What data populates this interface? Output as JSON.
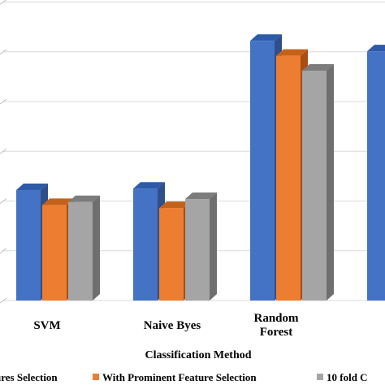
{
  "chart_data": {
    "type": "bar",
    "categories": [
      "SVM",
      "Naive  Byes",
      "Random Forest",
      ""
    ],
    "category_lines": [
      [
        "SVM"
      ],
      [
        "Naive  Byes"
      ],
      [
        "Random",
        "Forest"
      ],
      [
        ""
      ]
    ],
    "xlabel": "Classification Method",
    "ylabel": "",
    "ylim": [
      0,
      100
    ],
    "grid": true,
    "legend_position": "bottom",
    "series": [
      {
        "name": "ures Selection",
        "values": [
          37,
          37.5,
          87,
          83.5
        ],
        "color": "#4472C4",
        "top_color": "#2E5BA8",
        "side_color": "#2F4F8A"
      },
      {
        "name": "With Prominent Feature Selection",
        "values": [
          32,
          31,
          82,
          null
        ],
        "color": "#ED7D31",
        "top_color": "#C5621A",
        "side_color": "#A84E12"
      },
      {
        "name": "10 fold C",
        "values": [
          33,
          34,
          77,
          null
        ],
        "color": "#A5A5A5",
        "top_color": "#7C7C7C",
        "side_color": "#6F6F6F"
      }
    ]
  }
}
